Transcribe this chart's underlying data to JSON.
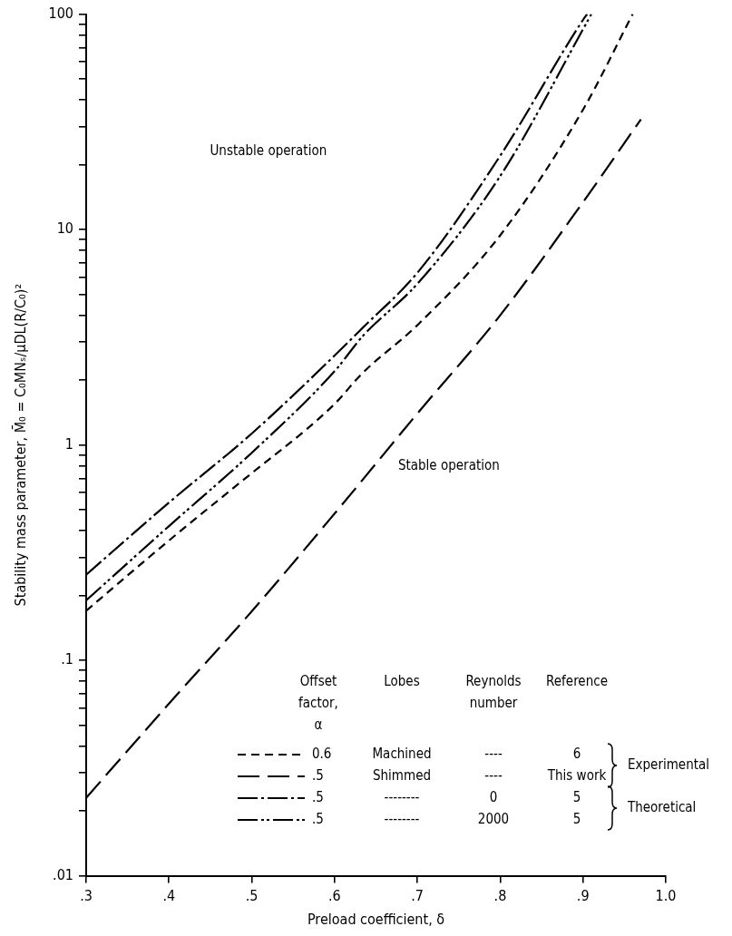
{
  "chart_data": {
    "type": "line",
    "xlabel": "Preload coefficient, δ",
    "ylabel": "Stability mass parameter, M̄₀ = C₀MNₛ/μDL(R/C₀)²",
    "legend_title": "Offset factor, α",
    "log": "y",
    "grid": false,
    "legend": "bottom",
    "marker": "none",
    "xlim": [
      0.3,
      1.0
    ],
    "xticks": [
      {
        "value": 0.3,
        "label": ".3"
      },
      {
        "value": 0.4,
        "label": ".4"
      },
      {
        "value": 0.5,
        "label": ".5"
      },
      {
        "value": 0.6,
        "label": ".6"
      },
      {
        "value": 0.7,
        "label": ".7"
      },
      {
        "value": 0.8,
        "label": ".8"
      },
      {
        "value": 0.9,
        "label": ".9"
      },
      {
        "value": 1.0,
        "label": "1.0"
      }
    ],
    "ylim": [
      0.01,
      100
    ],
    "yticks": [
      {
        "value": 0.01,
        "label": ".01"
      },
      {
        "value": 0.02,
        "label": null
      },
      {
        "value": 0.03,
        "label": null
      },
      {
        "value": 0.04,
        "label": null
      },
      {
        "value": 0.05,
        "label": null
      },
      {
        "value": 0.06,
        "label": null
      },
      {
        "value": 0.07,
        "label": null
      },
      {
        "value": 0.08,
        "label": null
      },
      {
        "value": 0.09,
        "label": null
      },
      {
        "value": 0.1,
        "label": ".1"
      },
      {
        "value": 0.2,
        "label": null
      },
      {
        "value": 0.3,
        "label": null
      },
      {
        "value": 0.4,
        "label": null
      },
      {
        "value": 0.5,
        "label": null
      },
      {
        "value": 0.6,
        "label": null
      },
      {
        "value": 0.7,
        "label": null
      },
      {
        "value": 0.8,
        "label": null
      },
      {
        "value": 0.9,
        "label": null
      },
      1,
      {
        "value": 2,
        "label": null
      },
      {
        "value": 3,
        "label": null
      },
      {
        "value": 4,
        "label": null
      },
      {
        "value": 5,
        "label": null
      },
      {
        "value": 6,
        "label": null
      },
      {
        "value": 7,
        "label": null
      },
      {
        "value": 8,
        "label": null
      },
      {
        "value": 9,
        "label": null
      },
      10,
      {
        "value": 20,
        "label": null
      },
      {
        "value": 30,
        "label": null
      },
      {
        "value": 40,
        "label": null
      },
      {
        "value": 50,
        "label": null
      },
      {
        "value": 60,
        "label": null
      },
      {
        "value": 70,
        "label": null
      },
      {
        "value": 80,
        "label": null
      },
      {
        "value": 90,
        "label": null
      },
      100
    ],
    "series": [
      {
        "name": "0.6",
        "color": "#000000",
        "line_style": "dashed",
        "x": [
          0.3,
          0.4,
          0.5,
          0.567,
          0.6,
          0.634,
          0.7,
          0.8,
          0.9,
          0.96
        ],
        "values": [
          0.17,
          0.36,
          0.74,
          1.19,
          1.55,
          2.16,
          3.6,
          9.4,
          36,
          100
        ]
      },
      {
        "name": ".5",
        "color": "#000000",
        "line_style": "longdash",
        "x": [
          0.3,
          0.4,
          0.5,
          0.6,
          0.7,
          0.8,
          0.9,
          0.97
        ],
        "values": [
          0.023,
          0.063,
          0.169,
          0.48,
          1.4,
          4.0,
          13.4,
          32.5
        ]
      },
      {
        "name": ".5",
        "color": "#000000",
        "line_style": "dashdot",
        "x": [
          0.3,
          0.4,
          0.5,
          0.6,
          0.634,
          0.7,
          0.8,
          0.9,
          0.905
        ],
        "values": [
          0.25,
          0.54,
          1.13,
          2.6,
          3.5,
          6.3,
          22,
          94,
          100
        ]
      },
      {
        "name": ".5",
        "color": "#000000",
        "line_style": "dashdotdot",
        "x": [
          0.3,
          0.4,
          0.5,
          0.6,
          0.634,
          0.7,
          0.8,
          0.9,
          0.91
        ],
        "values": [
          0.19,
          0.42,
          0.92,
          2.2,
          3.2,
          5.6,
          17.7,
          85,
          100
        ]
      }
    ],
    "annotations": [
      "Unstable operation",
      "Stable operation",
      "Lobes",
      "Reynolds number",
      "Reference",
      "Machined",
      "Shimmed",
      "--------",
      "--------",
      "----",
      "----",
      "0",
      "2000",
      "6",
      "This work",
      "5",
      "5",
      "Experimental",
      "Theoretical"
    ]
  }
}
